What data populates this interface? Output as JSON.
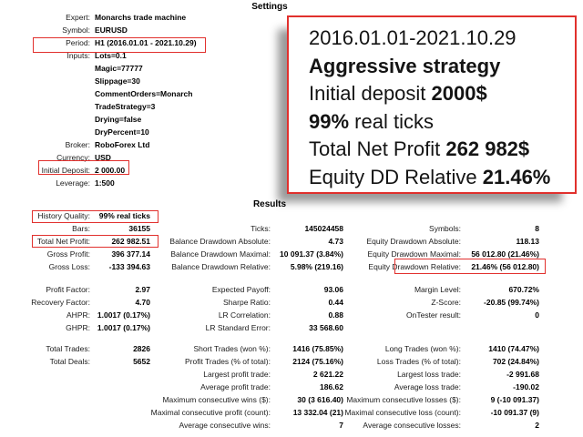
{
  "colors": {
    "annotation_red": "#e1302d",
    "text": "#000000",
    "background": "#ffffff"
  },
  "settings": {
    "title": "Settings",
    "rows": [
      {
        "label": "Expert:",
        "value": "Monarchs trade machine"
      },
      {
        "label": "Symbol:",
        "value": "EURUSD"
      },
      {
        "label": "Period:",
        "value": "H1 (2016.01.01 - 2021.10.29)"
      },
      {
        "label": "Inputs:",
        "value": "Lots=0.1"
      },
      {
        "label": "",
        "value": "Magic=77777"
      },
      {
        "label": "",
        "value": "Slippage=30"
      },
      {
        "label": "",
        "value": "CommentOrders=Monarch"
      },
      {
        "label": "",
        "value": "TradeStrategy=3"
      },
      {
        "label": "",
        "value": "Drying=false"
      },
      {
        "label": "",
        "value": "DryPercent=10"
      },
      {
        "label": "Broker:",
        "value": "RoboForex Ltd"
      },
      {
        "label": "Currency:",
        "value": "USD"
      },
      {
        "label": "Initial Deposit:",
        "value": "2 000.00"
      },
      {
        "label": "Leverage:",
        "value": "1:500"
      }
    ]
  },
  "callout": {
    "lines": [
      {
        "segments": [
          {
            "text": "2016.01.01-2021.10.29",
            "bold": false
          }
        ]
      },
      {
        "segments": [
          {
            "text": "Aggressive strategy",
            "bold": true
          }
        ]
      },
      {
        "segments": [
          {
            "text": "Initial deposit ",
            "bold": false
          },
          {
            "text": "2000$",
            "bold": true
          }
        ]
      },
      {
        "segments": [
          {
            "text": "99%",
            "bold": true
          },
          {
            "text": " real ticks",
            "bold": false
          }
        ]
      },
      {
        "segments": [
          {
            "text": "Total Net Profit ",
            "bold": false
          },
          {
            "text": "262 982$",
            "bold": true
          }
        ]
      },
      {
        "segments": [
          {
            "text": "Equity DD Relative ",
            "bold": false
          },
          {
            "text": "21.46%",
            "bold": true
          }
        ]
      }
    ]
  },
  "results": {
    "title": "Results",
    "block1": [
      {
        "c1l": "History Quality:",
        "c1v": "99% real ticks",
        "c2l": "",
        "c2v": "",
        "c3l": "",
        "c3v": ""
      },
      {
        "c1l": "Bars:",
        "c1v": "36155",
        "c2l": "Ticks:",
        "c2v": "145024458",
        "c3l": "Symbols:",
        "c3v": "8"
      },
      {
        "c1l": "Total Net Profit:",
        "c1v": "262 982.51",
        "c2l": "Balance Drawdown Absolute:",
        "c2v": "4.73",
        "c3l": "Equity Drawdown Absolute:",
        "c3v": "118.13"
      },
      {
        "c1l": "Gross Profit:",
        "c1v": "396 377.14",
        "c2l": "Balance Drawdown Maximal:",
        "c2v": "10 091.37 (3.84%)",
        "c3l": "Equity Drawdown Maximal:",
        "c3v": "56 012.80 (21.46%)"
      },
      {
        "c1l": "Gross Loss:",
        "c1v": "-133 394.63",
        "c2l": "Balance Drawdown Relative:",
        "c2v": "5.98% (219.16)",
        "c3l": "Equity Drawdown Relative:",
        "c3v": "21.46% (56 012.80)"
      }
    ],
    "block2": [
      {
        "c1l": "Profit Factor:",
        "c1v": "2.97",
        "c2l": "Expected Payoff:",
        "c2v": "93.06",
        "c3l": "Margin Level:",
        "c3v": "670.72%"
      },
      {
        "c1l": "Recovery Factor:",
        "c1v": "4.70",
        "c2l": "Sharpe Ratio:",
        "c2v": "0.44",
        "c3l": "Z-Score:",
        "c3v": "-20.85 (99.74%)"
      },
      {
        "c1l": "AHPR:",
        "c1v": "1.0017 (0.17%)",
        "c2l": "LR Correlation:",
        "c2v": "0.88",
        "c3l": "OnTester result:",
        "c3v": "0"
      },
      {
        "c1l": "GHPR:",
        "c1v": "1.0017 (0.17%)",
        "c2l": "LR Standard Error:",
        "c2v": "33 568.60",
        "c3l": "",
        "c3v": ""
      }
    ],
    "block3": [
      {
        "c1l": "Total Trades:",
        "c1v": "2826",
        "c2l": "Short Trades (won %):",
        "c2v": "1416 (75.85%)",
        "c3l": "Long Trades (won %):",
        "c3v": "1410 (74.47%)"
      },
      {
        "c1l": "Total Deals:",
        "c1v": "5652",
        "c2l": "Profit Trades (% of total):",
        "c2v": "2124 (75.16%)",
        "c3l": "Loss Trades (% of total):",
        "c3v": "702 (24.84%)"
      },
      {
        "c1l": "",
        "c1v": "",
        "c2l": "Largest profit trade:",
        "c2v": "2 621.22",
        "c3l": "Largest loss trade:",
        "c3v": "-2 991.68"
      },
      {
        "c1l": "",
        "c1v": "",
        "c2l": "Average profit trade:",
        "c2v": "186.62",
        "c3l": "Average loss trade:",
        "c3v": "-190.02"
      },
      {
        "c1l": "",
        "c1v": "",
        "c2l": "Maximum consecutive wins ($):",
        "c2v": "30 (3 616.40)",
        "c3l": "Maximum consecutive losses ($):",
        "c3v": "9 (-10 091.37)"
      },
      {
        "c1l": "",
        "c1v": "",
        "c2l": "Maximal consecutive profit (count):",
        "c2v": "13 332.04 (21)",
        "c3l": "Maximal consecutive loss (count):",
        "c3v": "-10 091.37 (9)"
      },
      {
        "c1l": "",
        "c1v": "",
        "c2l": "Average consecutive wins:",
        "c2v": "7",
        "c3l": "Average consecutive losses:",
        "c3v": "2"
      }
    ]
  }
}
